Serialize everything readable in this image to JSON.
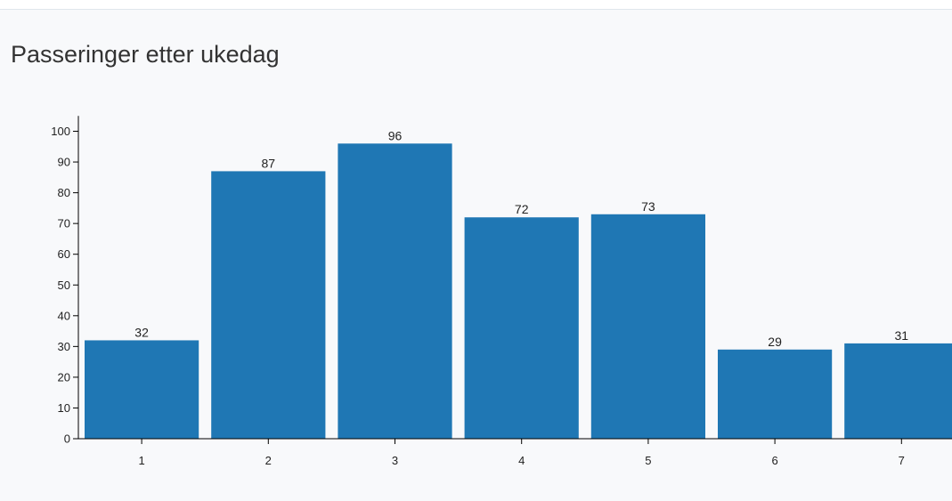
{
  "chart_data": {
    "type": "bar",
    "title": "Passeringer etter ukedag",
    "categories": [
      "1",
      "2",
      "3",
      "4",
      "5",
      "6",
      "7"
    ],
    "values": [
      32,
      87,
      96,
      72,
      73,
      29,
      31
    ],
    "data_labels": [
      "32",
      "87",
      "96",
      "72",
      "73",
      "29",
      "31"
    ],
    "y_ticks": [
      0,
      10,
      20,
      30,
      40,
      50,
      60,
      70,
      80,
      90,
      100
    ],
    "ylim": [
      0,
      105
    ],
    "xlabel": "",
    "ylabel": "",
    "grid": false,
    "bar_color": "#1f77b4"
  }
}
